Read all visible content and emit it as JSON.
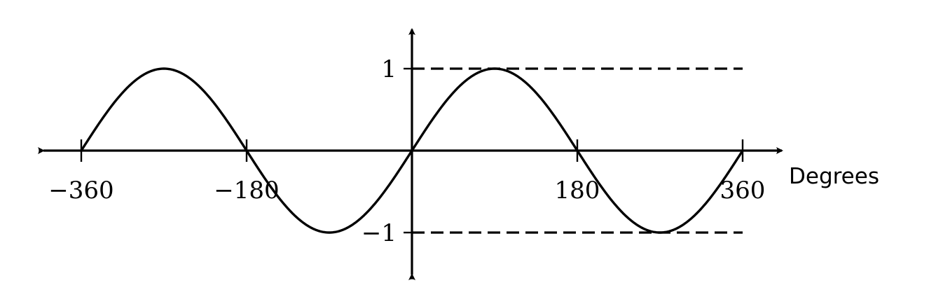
{
  "chart_data": {
    "type": "line",
    "xlabel": "Degrees",
    "ylabel": "",
    "xlim": [
      -360,
      360
    ],
    "ylim": [
      -1,
      1
    ],
    "x_ticks": [
      -360,
      -180,
      180,
      360
    ],
    "x_tick_labels": [
      "−360",
      "−180",
      "180",
      "360"
    ],
    "y_ticks": [
      1,
      -1
    ],
    "y_tick_labels": [
      "1",
      "−1"
    ],
    "grid": false,
    "series": [
      {
        "x": [
          -360,
          -330,
          -300,
          -270,
          -240,
          -210,
          -180,
          -150,
          -120,
          -90,
          -60,
          -30,
          0,
          30,
          60,
          90,
          120,
          150,
          180,
          210,
          240,
          270,
          300,
          330,
          360
        ],
        "y": [
          0,
          0.5,
          0.866,
          1,
          0.866,
          0.5,
          0,
          -0.5,
          -0.866,
          -1,
          -0.866,
          -0.5,
          0,
          0.5,
          0.866,
          1,
          0.866,
          0.5,
          0,
          -0.5,
          -0.866,
          -1,
          -0.866,
          -0.5,
          0
        ]
      }
    ],
    "reference_lines": [
      {
        "y": 1,
        "x_from": 0,
        "x_to": 360,
        "style": "dashed"
      },
      {
        "y": -1,
        "x_from": 0,
        "x_to": 360,
        "style": "dashed"
      }
    ]
  }
}
